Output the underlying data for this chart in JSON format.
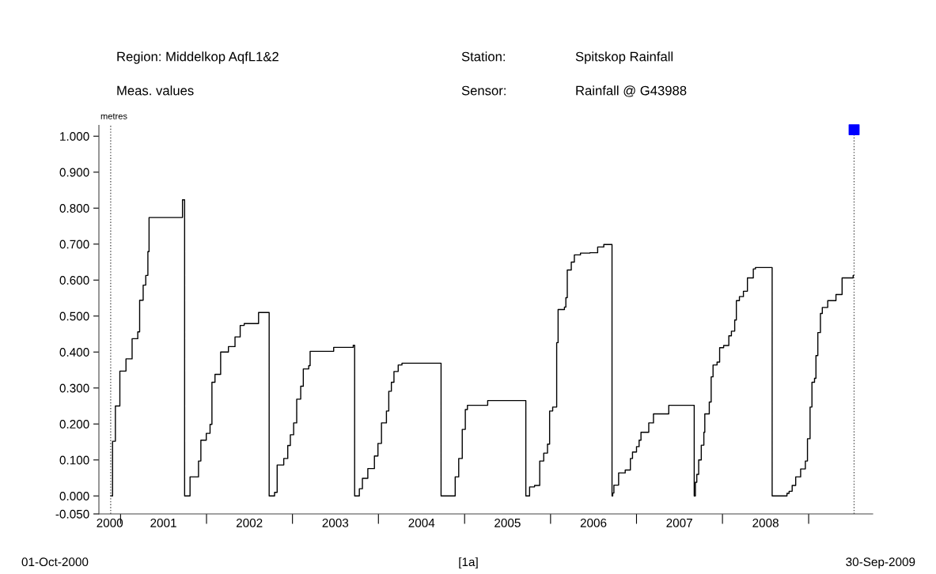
{
  "chart_data": {
    "type": "step",
    "ylabel": "metres",
    "annotations": [
      "Region: Middelkop AqfL1&2",
      "Meas. values",
      "Station:",
      "Sensor:",
      "Spitskop Rainfall",
      "Rainfall @ G43988",
      "01-Oct-2000",
      "[1a]",
      "30-Sep-2009"
    ],
    "xlim": [
      "2000-10-01",
      "2009-09-30"
    ],
    "xticks": [
      {
        "value": "2001-01-01",
        "label": null
      },
      {
        "value": "2002-01-01",
        "label": null
      },
      {
        "value": "2003-01-01",
        "label": null
      },
      {
        "value": "2004-01-01",
        "label": null
      },
      {
        "value": "2005-01-01",
        "label": null
      },
      {
        "value": "2006-01-01",
        "label": null
      },
      {
        "value": "2007-01-01",
        "label": null
      },
      {
        "value": "2008-01-01",
        "label": null
      },
      {
        "value": "2009-01-01",
        "label": null
      },
      {
        "value": "2000-11-16",
        "label": "2000"
      },
      {
        "value": "2001-07-02",
        "label": "2001"
      },
      {
        "value": "2002-07-02",
        "label": "2002"
      },
      {
        "value": "2003-07-02",
        "label": "2003"
      },
      {
        "value": "2004-07-02",
        "label": "2004"
      },
      {
        "value": "2005-07-02",
        "label": "2005"
      },
      {
        "value": "2006-07-02",
        "label": "2006"
      },
      {
        "value": "2007-07-02",
        "label": "2007"
      },
      {
        "value": "2008-07-02",
        "label": "2008"
      }
    ],
    "ylim": [
      -0.05,
      1.03
    ],
    "yticks": [
      {
        "value": -0.05,
        "label": "-0.050"
      },
      {
        "value": 0,
        "label": "0.000"
      },
      {
        "value": 0.1,
        "label": "0.100"
      },
      {
        "value": 0.2,
        "label": "0.200"
      },
      {
        "value": 0.3,
        "label": "0.300"
      },
      {
        "value": 0.4,
        "label": "0.400"
      },
      {
        "value": 0.5,
        "label": "0.500"
      },
      {
        "value": 0.6,
        "label": "0.600"
      },
      {
        "value": 0.7,
        "label": "0.700"
      },
      {
        "value": 0.8,
        "label": "0.800"
      },
      {
        "value": 0.9,
        "label": "0.900"
      },
      {
        "value": 1.0,
        "label": "1.000"
      }
    ],
    "grid": false,
    "legend": false,
    "ref_lines": [
      {
        "axis": "x",
        "value": "2000-11-20",
        "color": "#555555",
        "line_style": "dotted"
      },
      {
        "axis": "x",
        "value": "2009-07-13",
        "color": "#555555",
        "line_style": "dotted"
      }
    ],
    "series": [
      {
        "color": "#000000",
        "marker": "none",
        "line_style": "solid",
        "x": [
          "2000-11-20",
          "2000-11-28",
          "2000-12-10",
          "2000-12-29",
          "2001-01-24",
          "2001-02-19",
          "2001-03-15",
          "2001-03-23",
          "2001-04-07",
          "2001-04-18",
          "2001-04-27",
          "2001-05-02",
          "2001-09-21",
          "2001-09-30",
          "2001-10-23",
          "2001-11-28",
          "2001-12-08",
          "2001-12-31",
          "2002-01-16",
          "2002-01-24",
          "2002-02-06",
          "2002-03-02",
          "2002-04-04",
          "2002-05-02",
          "2002-05-24",
          "2002-06-10",
          "2002-08-10",
          "2002-09-24",
          "2002-10-17",
          "2002-10-28",
          "2002-11-25",
          "2002-12-12",
          "2002-12-23",
          "2003-01-06",
          "2003-01-19",
          "2003-02-05",
          "2003-02-16",
          "2003-03-11",
          "2003-03-17",
          "2003-06-25",
          "2003-09-16",
          "2003-09-22",
          "2003-10-12",
          "2003-10-25",
          "2003-11-17",
          "2003-12-15",
          "2003-12-30",
          "2004-01-14",
          "2004-02-04",
          "2004-02-14",
          "2004-02-25",
          "2004-03-07",
          "2004-03-25",
          "2004-04-10",
          "2004-09-23",
          "2004-11-22",
          "2004-12-07",
          "2004-12-22",
          "2005-01-04",
          "2005-01-13",
          "2005-04-09",
          "2005-09-18",
          "2005-10-04",
          "2005-10-25",
          "2005-11-16",
          "2005-12-03",
          "2005-12-19",
          "2005-12-28",
          "2006-01-10",
          "2006-01-27",
          "2006-02-02",
          "2006-03-01",
          "2006-03-07",
          "2006-03-13",
          "2006-03-30",
          "2006-04-12",
          "2006-05-08",
          "2006-06-17",
          "2006-07-20",
          "2006-08-15",
          "2006-09-19",
          "2006-09-22",
          "2006-09-27",
          "2006-10-17",
          "2006-11-14",
          "2006-12-06",
          "2006-12-15",
          "2007-01-01",
          "2007-01-12",
          "2007-01-20",
          "2007-02-22",
          "2007-03-14",
          "2007-05-18",
          "2007-09-03",
          "2007-09-08",
          "2007-09-14",
          "2007-09-22",
          "2007-10-03",
          "2007-10-14",
          "2007-10-18",
          "2007-11-06",
          "2007-11-14",
          "2007-11-22",
          "2007-12-09",
          "2007-12-20",
          "2008-01-06",
          "2008-01-28",
          "2008-02-08",
          "2008-02-22",
          "2008-02-29",
          "2008-03-13",
          "2008-03-30",
          "2008-04-16",
          "2008-05-11",
          "2008-05-20",
          "2008-07-30",
          "2008-10-01",
          "2008-10-10",
          "2008-10-23",
          "2008-11-07",
          "2008-11-28",
          "2008-12-18",
          "2008-12-27",
          "2009-01-07",
          "2009-01-15",
          "2009-01-26",
          "2009-02-01",
          "2009-02-09",
          "2009-02-20",
          "2009-02-28",
          "2009-03-23",
          "2009-04-27",
          "2009-05-23",
          "2009-07-09",
          "2009-07-12"
        ],
        "values": [
          0,
          0.152,
          0.25,
          0.347,
          0.381,
          0.437,
          0.456,
          0.544,
          0.586,
          0.613,
          0.679,
          0.774,
          0.823,
          0,
          0.053,
          0.097,
          0.155,
          0.174,
          0.199,
          0.316,
          0.338,
          0.4,
          0.415,
          0.442,
          0.474,
          0.479,
          0.51,
          0,
          0.01,
          0.086,
          0.104,
          0.14,
          0.17,
          0.203,
          0.269,
          0.305,
          0.353,
          0.362,
          0.402,
          0.413,
          0.419,
          0,
          0.02,
          0.049,
          0.076,
          0.111,
          0.146,
          0.203,
          0.236,
          0.291,
          0.316,
          0.346,
          0.364,
          0.369,
          0,
          0.053,
          0.104,
          0.185,
          0.24,
          0.252,
          0.265,
          0,
          0.025,
          0.029,
          0.097,
          0.119,
          0.144,
          0.236,
          0.247,
          0.426,
          0.518,
          0.525,
          0.551,
          0.628,
          0.65,
          0.67,
          0.675,
          0.676,
          0.692,
          0.699,
          0,
          0.008,
          0.03,
          0.064,
          0.072,
          0.104,
          0.122,
          0.137,
          0.155,
          0.177,
          0.203,
          0.228,
          0.252,
          0,
          0.038,
          0.06,
          0.1,
          0.141,
          0.177,
          0.228,
          0.261,
          0.331,
          0.364,
          0.372,
          0.412,
          0.418,
          0.445,
          0.458,
          0.489,
          0.543,
          0.554,
          0.569,
          0.606,
          0.631,
          0.635,
          0,
          0.007,
          0.013,
          0.029,
          0.053,
          0.075,
          0.097,
          0.159,
          0.247,
          0.316,
          0.327,
          0.39,
          0.454,
          0.507,
          0.524,
          0.543,
          0.56,
          0.606,
          0.613,
          0.613
        ]
      },
      {
        "type": "scatter",
        "color": "#0000ff",
        "marker": "square",
        "x": [
          "2009-07-13"
        ],
        "values": [
          1.018
        ]
      }
    ]
  }
}
